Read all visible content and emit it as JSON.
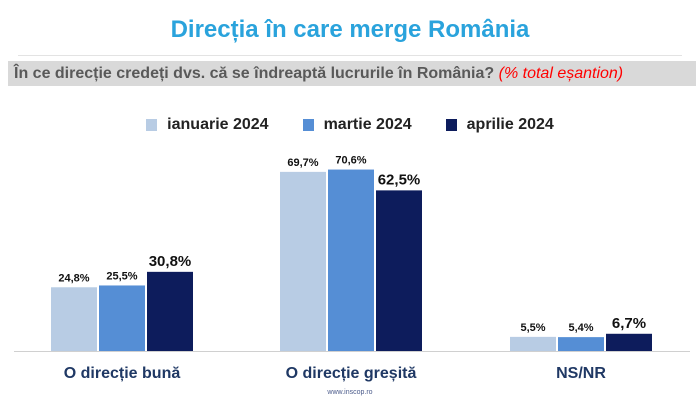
{
  "header": {
    "title": "Direcția în care merge România",
    "question": "În ce direcție credeți dvs. că se îndreaptă lucrurile în România?",
    "question_note": "(% total eșantion)"
  },
  "footer": {
    "source": "www.inscop.ro"
  },
  "chart_data": {
    "type": "bar",
    "title": "Direcția în care merge România",
    "categories": [
      "O direcție bună",
      "O direcție greșită",
      "NS/NR"
    ],
    "series": [
      {
        "name": "ianuarie 2024",
        "color": "#b8cce4",
        "values": [
          24.8,
          69.7,
          5.5
        ],
        "labels": [
          "24,8%",
          "69,7%",
          "5,5%"
        ]
      },
      {
        "name": "martie 2024",
        "color": "#558ed5",
        "values": [
          25.5,
          70.6,
          5.4
        ],
        "labels": [
          "25,5%",
          "70,6%",
          "5,4%"
        ]
      },
      {
        "name": "aprilie 2024",
        "color": "#0d1c5c",
        "values": [
          30.8,
          62.5,
          6.7
        ],
        "labels": [
          "30,8%",
          "62,5%",
          "6,7%"
        ]
      }
    ],
    "ylim": [
      0,
      100
    ],
    "grid": false,
    "legend": "top-center"
  }
}
